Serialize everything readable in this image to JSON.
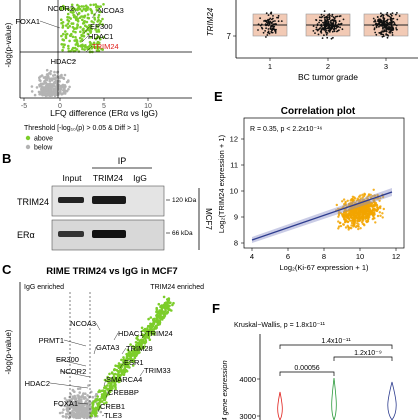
{
  "figure": {
    "panels": {
      "b": "B",
      "c": "C",
      "e": "E",
      "f": "F"
    },
    "volcano_top": {
      "ylabel": "-log(p-value)",
      "xlabel": "LFQ difference (ERα vs IgG)",
      "ticks_x": [
        "-5",
        "0",
        "5",
        "10"
      ],
      "labels": [
        "NCOR2",
        "NCOA3",
        "FOXA1",
        "EP300",
        "HDAC1",
        "TRIM24",
        "HDAC2"
      ],
      "highlight": "TRIM24",
      "legend": {
        "title": "Threshold [-log₁₀(p) > 0.05 & Diff > 1]",
        "above": "above",
        "below": "below"
      }
    },
    "boxplot": {
      "ylabel": "TRIM24",
      "ytick": "7",
      "xticks": [
        "1",
        "2",
        "3"
      ],
      "xlabel": "BC tumor grade"
    },
    "western": {
      "ip": "IP",
      "cols": [
        "Input",
        "TRIM24",
        "IgG"
      ],
      "rows": [
        "TRIM24",
        "ERα"
      ],
      "kda": [
        "120 kDa",
        "66 kDa"
      ],
      "cell": "MCF7"
    },
    "correlation": {
      "title": "Correlation plot",
      "stats": "R = 0.35, p < 2.2x10⁻¹⁶",
      "ylabel": "Log₂(TRIM24 expression + 1)",
      "xlabel": "Log₂(Ki-67 expression + 1)",
      "yticks": [
        "8",
        "9",
        "10",
        "11",
        "12"
      ],
      "xticks": [
        "4",
        "6",
        "8",
        "10",
        "12"
      ]
    },
    "rime": {
      "title": "RIME TRIM24 vs IgG in MCF7",
      "left": "IgG enriched",
      "right": "TRIM24 enriched",
      "ylabel": "-log(p-value)",
      "labels": [
        "NCOA3",
        "HDAC1",
        "TRIM24",
        "PRMT1",
        "GATA3",
        "TRIM28",
        "ER300",
        "ESR1",
        "TRIM33",
        "NCOR2",
        "HDAC2",
        "SMARCA4",
        "CREBBP",
        "FOXA1",
        "CREB1",
        "TLE3"
      ]
    },
    "kruskal": {
      "title": "Kruskal−Wallis, p = 1.8x10⁻¹¹",
      "comparisons": [
        "1.4x10⁻¹¹",
        "1.2x10⁻⁹",
        "0.00056"
      ],
      "ylabel": "24 gene expression",
      "yticks": [
        "4000",
        "3000"
      ]
    },
    "colors": {
      "green": "#7ccd2a",
      "grey": "#b3b3b3",
      "red": "#e0201b",
      "blue": "#2e3d8f",
      "box": "#e9a07a"
    }
  }
}
